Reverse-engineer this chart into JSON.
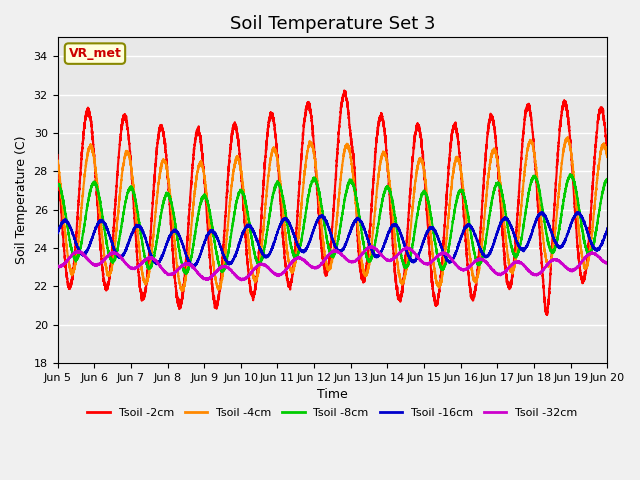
{
  "title": "Soil Temperature Set 3",
  "xlabel": "Time",
  "ylabel": "Soil Temperature (C)",
  "ylim": [
    18,
    35
  ],
  "yticks": [
    18,
    20,
    22,
    24,
    26,
    28,
    30,
    32,
    34
  ],
  "xtick_labels": [
    "Jun 5",
    "Jun 6",
    "Jun 7",
    "Jun 8",
    "Jun 9",
    "Jun 10",
    "Jun 11",
    "Jun 12",
    "Jun 13",
    "Jun 14",
    "Jun 15",
    "Jun 16",
    "Jun 17",
    "Jun 18",
    "Jun 19",
    "Jun 20"
  ],
  "series": [
    {
      "label": "Tsoil -2cm",
      "color": "#ff0000",
      "lw": 1.5
    },
    {
      "label": "Tsoil -4cm",
      "color": "#ff8800",
      "lw": 1.5
    },
    {
      "label": "Tsoil -8cm",
      "color": "#00cc00",
      "lw": 1.5
    },
    {
      "label": "Tsoil -16cm",
      "color": "#0000cc",
      "lw": 1.5
    },
    {
      "label": "Tsoil -32cm",
      "color": "#cc00cc",
      "lw": 1.5
    }
  ],
  "bg_color": "#e8e8e8",
  "grid_color": "#ffffff",
  "annotation_text": "VR_met",
  "annotation_color": "#cc0000",
  "annotation_bg": "#ffffdd",
  "annotation_border": "#888800"
}
